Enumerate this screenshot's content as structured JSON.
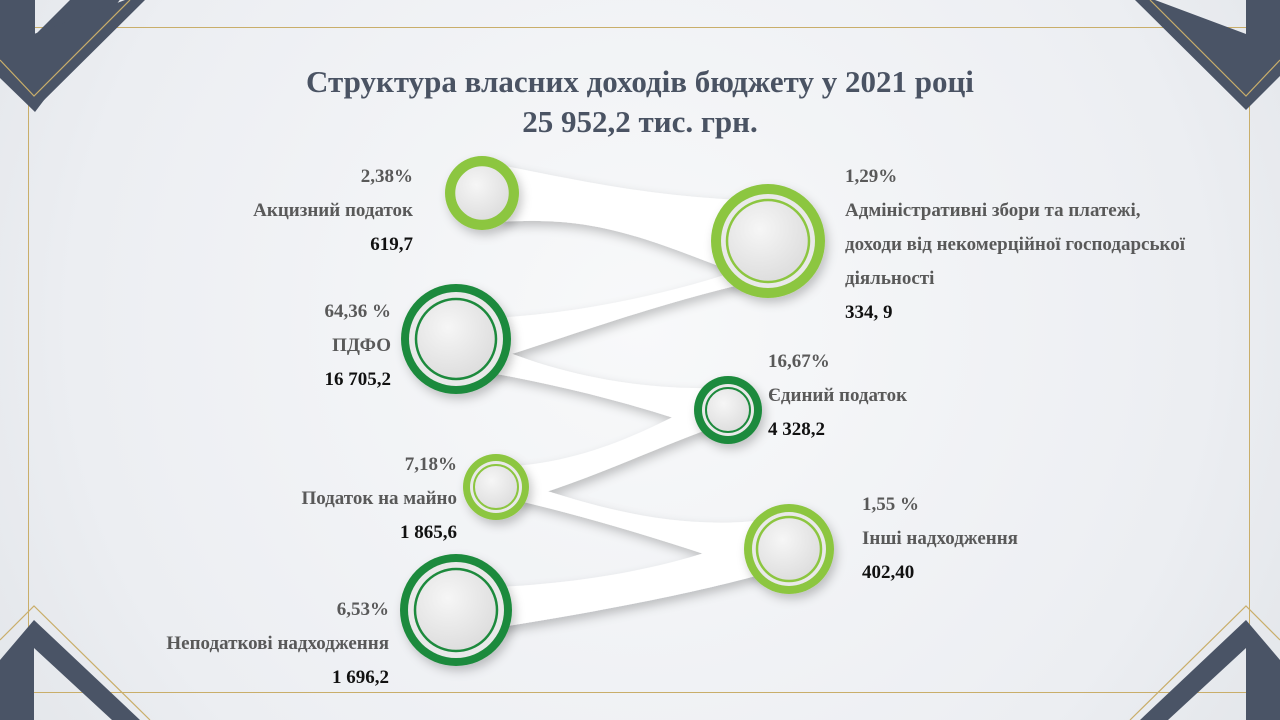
{
  "title": {
    "line1": "Структура власних доходів бюджету у 2021 році",
    "line2": "25 952,2 тис. грн."
  },
  "items": [
    {
      "pct": "2,38%",
      "name": "Акцизний податок",
      "value": "619,7",
      "color": "#8cc63f"
    },
    {
      "pct": "1,29%",
      "name1": "Адміністративні збори та платежі,",
      "name2": "доходи від некомерційної господарської",
      "name3": "діяльності",
      "value": "334, 9",
      "color": "#8cc63f"
    },
    {
      "pct": "64,36 %",
      "name": "ПДФО",
      "value": "16 705,2",
      "color": "#1f8a3c"
    },
    {
      "pct": "16,67%",
      "name": "Єдиний податок",
      "value": "4 328,2",
      "color": "#1f8a3c"
    },
    {
      "pct": "7,18%",
      "name": "Податок на майно",
      "value": "1 865,6",
      "color": "#8cc63f"
    },
    {
      "pct": "1,55 %",
      "name": "Інші надходження",
      "value": "402,40",
      "color": "#8cc63f"
    },
    {
      "pct": "6,53%",
      "name": "Неподаткові надходження",
      "value": "1 696,2",
      "color": "#1f8a3c"
    }
  ]
}
